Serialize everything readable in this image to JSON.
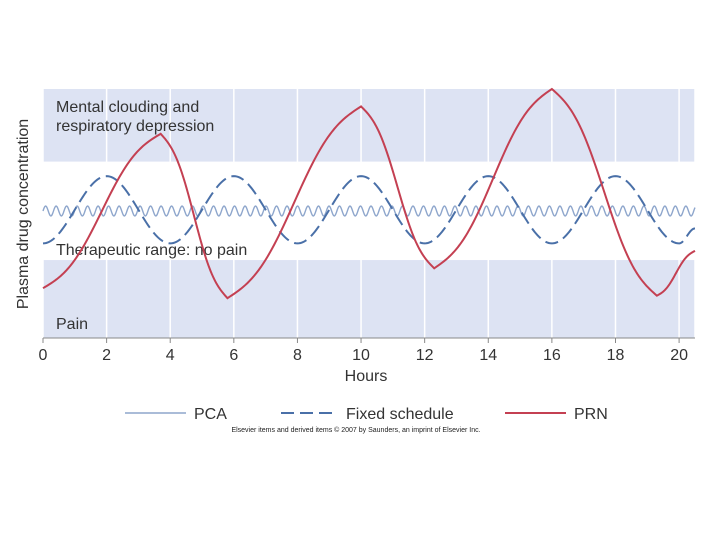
{
  "chart_data": {
    "type": "line",
    "title": "",
    "xlabel": "Hours",
    "ylabel": "Plasma drug concentration",
    "xlim": [
      0,
      20.5
    ],
    "ylim": [
      0,
      100
    ],
    "x_ticks": [
      "0",
      "2",
      "4",
      "6",
      "8",
      "10",
      "12",
      "14",
      "16",
      "18",
      "20"
    ],
    "grid": "vertical",
    "zones": [
      {
        "name": "Mental clouding and respiratory depression",
        "lines": [
          "Mental clouding and",
          "respiratory depression"
        ],
        "from": 70.8,
        "to": 100,
        "color": "#dde3f3"
      },
      {
        "name": "Therapeutic range: no pain",
        "lines": [
          "Therapeutic range: no pain"
        ],
        "from": 31.3,
        "to": 70.8,
        "color": "#ffffff"
      },
      {
        "name": "Pain",
        "lines": [
          "Pain"
        ],
        "from": 0,
        "to": 31.3,
        "color": "#dde3f3"
      }
    ],
    "series": [
      {
        "name": "PCA",
        "style": "solid",
        "color": "#8ea6cc",
        "center": 51,
        "amplitude": 2,
        "period": 0.33
      },
      {
        "name": "Fixed schedule",
        "style": "dashed",
        "color": "#4a70a8",
        "x": [
          0,
          2,
          4,
          6,
          8,
          10,
          12,
          14,
          16,
          18,
          20,
          20.5
        ],
        "y": [
          38,
          65,
          38,
          65,
          38,
          65,
          38,
          65,
          38,
          65,
          38,
          44
        ]
      },
      {
        "name": "PRN",
        "style": "solid",
        "color": "#c44052",
        "x": [
          0,
          3.7,
          5.8,
          10,
          12.3,
          16,
          19.3,
          20.5
        ],
        "y": [
          20,
          82,
          16,
          93,
          28,
          100,
          17,
          35
        ]
      }
    ],
    "legend_position": "bottom"
  },
  "credit": "Elsevier items and derived items © 2007 by Saunders, an imprint of Elsevier Inc."
}
